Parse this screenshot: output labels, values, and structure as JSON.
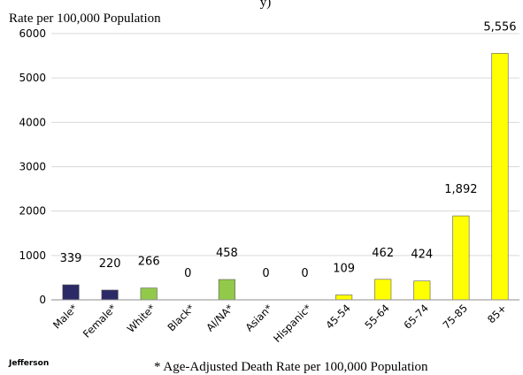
{
  "chart_data": {
    "type": "bar",
    "title": "y)",
    "ylabel": "Rate per 100,000 Population",
    "categories": [
      "Male*",
      "Female*",
      "White*",
      "Black*",
      "AI/NA*",
      "Asian*",
      "Hispanic*",
      "45-54",
      "55-64",
      "65-74",
      "75-85",
      "85+"
    ],
    "values": [
      339,
      220,
      266,
      0,
      458,
      0,
      0,
      109,
      462,
      424,
      1892,
      5556
    ],
    "data_labels": [
      "339",
      "220",
      "266",
      "0",
      "458",
      "0",
      "0",
      "109",
      "462",
      "424",
      "1,892",
      "5,556"
    ],
    "bar_colors": [
      "#2b2a66",
      "#2b2a66",
      "#92c94a",
      "#92c94a",
      "#92c94a",
      "#92c94a",
      "#92c94a",
      "#ffff00",
      "#ffff00",
      "#ffff00",
      "#ffff00",
      "#ffff00"
    ],
    "ylim": [
      0,
      6000
    ],
    "yticks": [
      0,
      1000,
      2000,
      3000,
      4000,
      5000,
      6000
    ],
    "grid": true,
    "legend": "none"
  },
  "source_label": "Jefferson",
  "footnote": "* Age-Adjusted Death Rate per 100,000 Population",
  "colors": {
    "grid": "#d9d9d9",
    "axis": "#8c8c8c",
    "bar_outline": "#595959",
    "text": "#000000"
  }
}
